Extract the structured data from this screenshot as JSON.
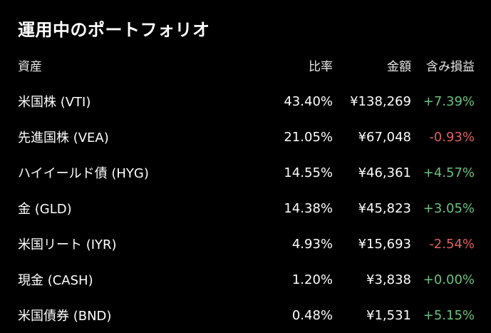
{
  "title": "運用中のポートフォリオ",
  "columns": {
    "asset": "資産",
    "ratio": "比率",
    "amount": "金額",
    "gain": "含み損益"
  },
  "colors": {
    "positive": "#6cc17e",
    "negative": "#e06060",
    "background": "#000000"
  },
  "rows": [
    {
      "name": "米国株 (VTI)",
      "ratio": "43.40%",
      "amount": "¥138,269",
      "gain": "+7.39%",
      "sign": "pos"
    },
    {
      "name": "先進国株 (VEA)",
      "ratio": "21.05%",
      "amount": "¥67,048",
      "gain": "-0.93%",
      "sign": "neg"
    },
    {
      "name": "ハイイールド債 (HYG)",
      "ratio": "14.55%",
      "amount": "¥46,361",
      "gain": "+4.57%",
      "sign": "pos"
    },
    {
      "name": "金 (GLD)",
      "ratio": "14.38%",
      "amount": "¥45,823",
      "gain": "+3.05%",
      "sign": "pos"
    },
    {
      "name": "米国リート (IYR)",
      "ratio": "4.93%",
      "amount": "¥15,693",
      "gain": "-2.54%",
      "sign": "neg"
    },
    {
      "name": "現金 (CASH)",
      "ratio": "1.20%",
      "amount": "¥3,838",
      "gain": "+0.00%",
      "sign": "pos"
    },
    {
      "name": "米国債券 (BND)",
      "ratio": "0.48%",
      "amount": "¥1,531",
      "gain": "+5.15%",
      "sign": "pos"
    }
  ]
}
